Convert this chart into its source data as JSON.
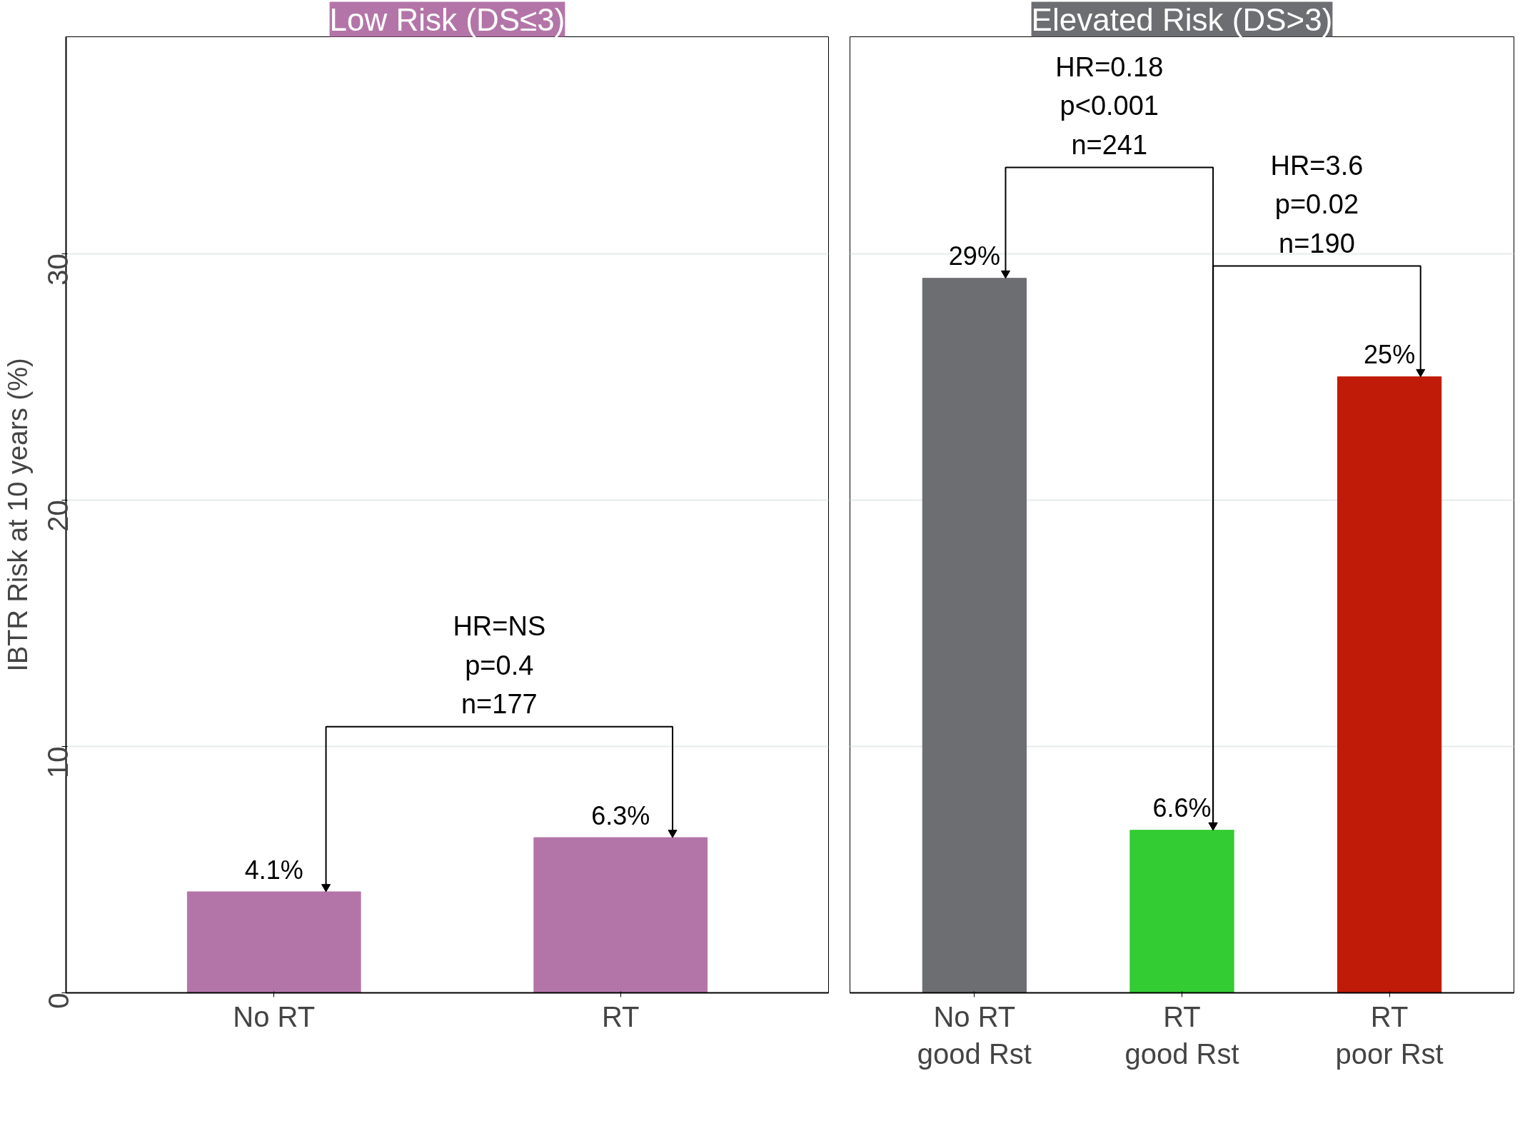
{
  "chart_data": [
    {
      "type": "bar",
      "title": "Low Risk (DS≤3)",
      "ylabel": "IBTR Risk at 10 years (%)",
      "categories": [
        "No RT",
        "RT"
      ],
      "values": [
        4.1,
        6.3
      ],
      "colors": [
        "#b375a8",
        "#b375a8"
      ],
      "value_labels": [
        "4.1%",
        "6.3%"
      ],
      "ylim": [
        0,
        38.8
      ],
      "yticks": [
        0,
        10,
        20,
        30
      ],
      "grid": "y",
      "annotations": [
        "HR=NS\np=0.4\nn=177"
      ]
    },
    {
      "type": "bar",
      "title": "Elevated Risk (DS>3)",
      "categories": [
        "No RT\ngood Rst",
        "RT\ngood Rst",
        "RT\npoor Rst"
      ],
      "values": [
        29,
        6.6,
        25
      ],
      "colors": [
        "#6d6e71",
        "#33cc33",
        "#c01a08"
      ],
      "value_labels": [
        "29%",
        "6.6%",
        "25%"
      ],
      "ylim": [
        0,
        38.8
      ],
      "yticks": [
        0,
        10,
        20,
        30
      ],
      "grid": "y",
      "tick_labels": "x",
      "annotations": [
        "HR=0.18\np<0.001\nn=241",
        "HR=3.6\np=0.02\nn=190"
      ]
    }
  ]
}
